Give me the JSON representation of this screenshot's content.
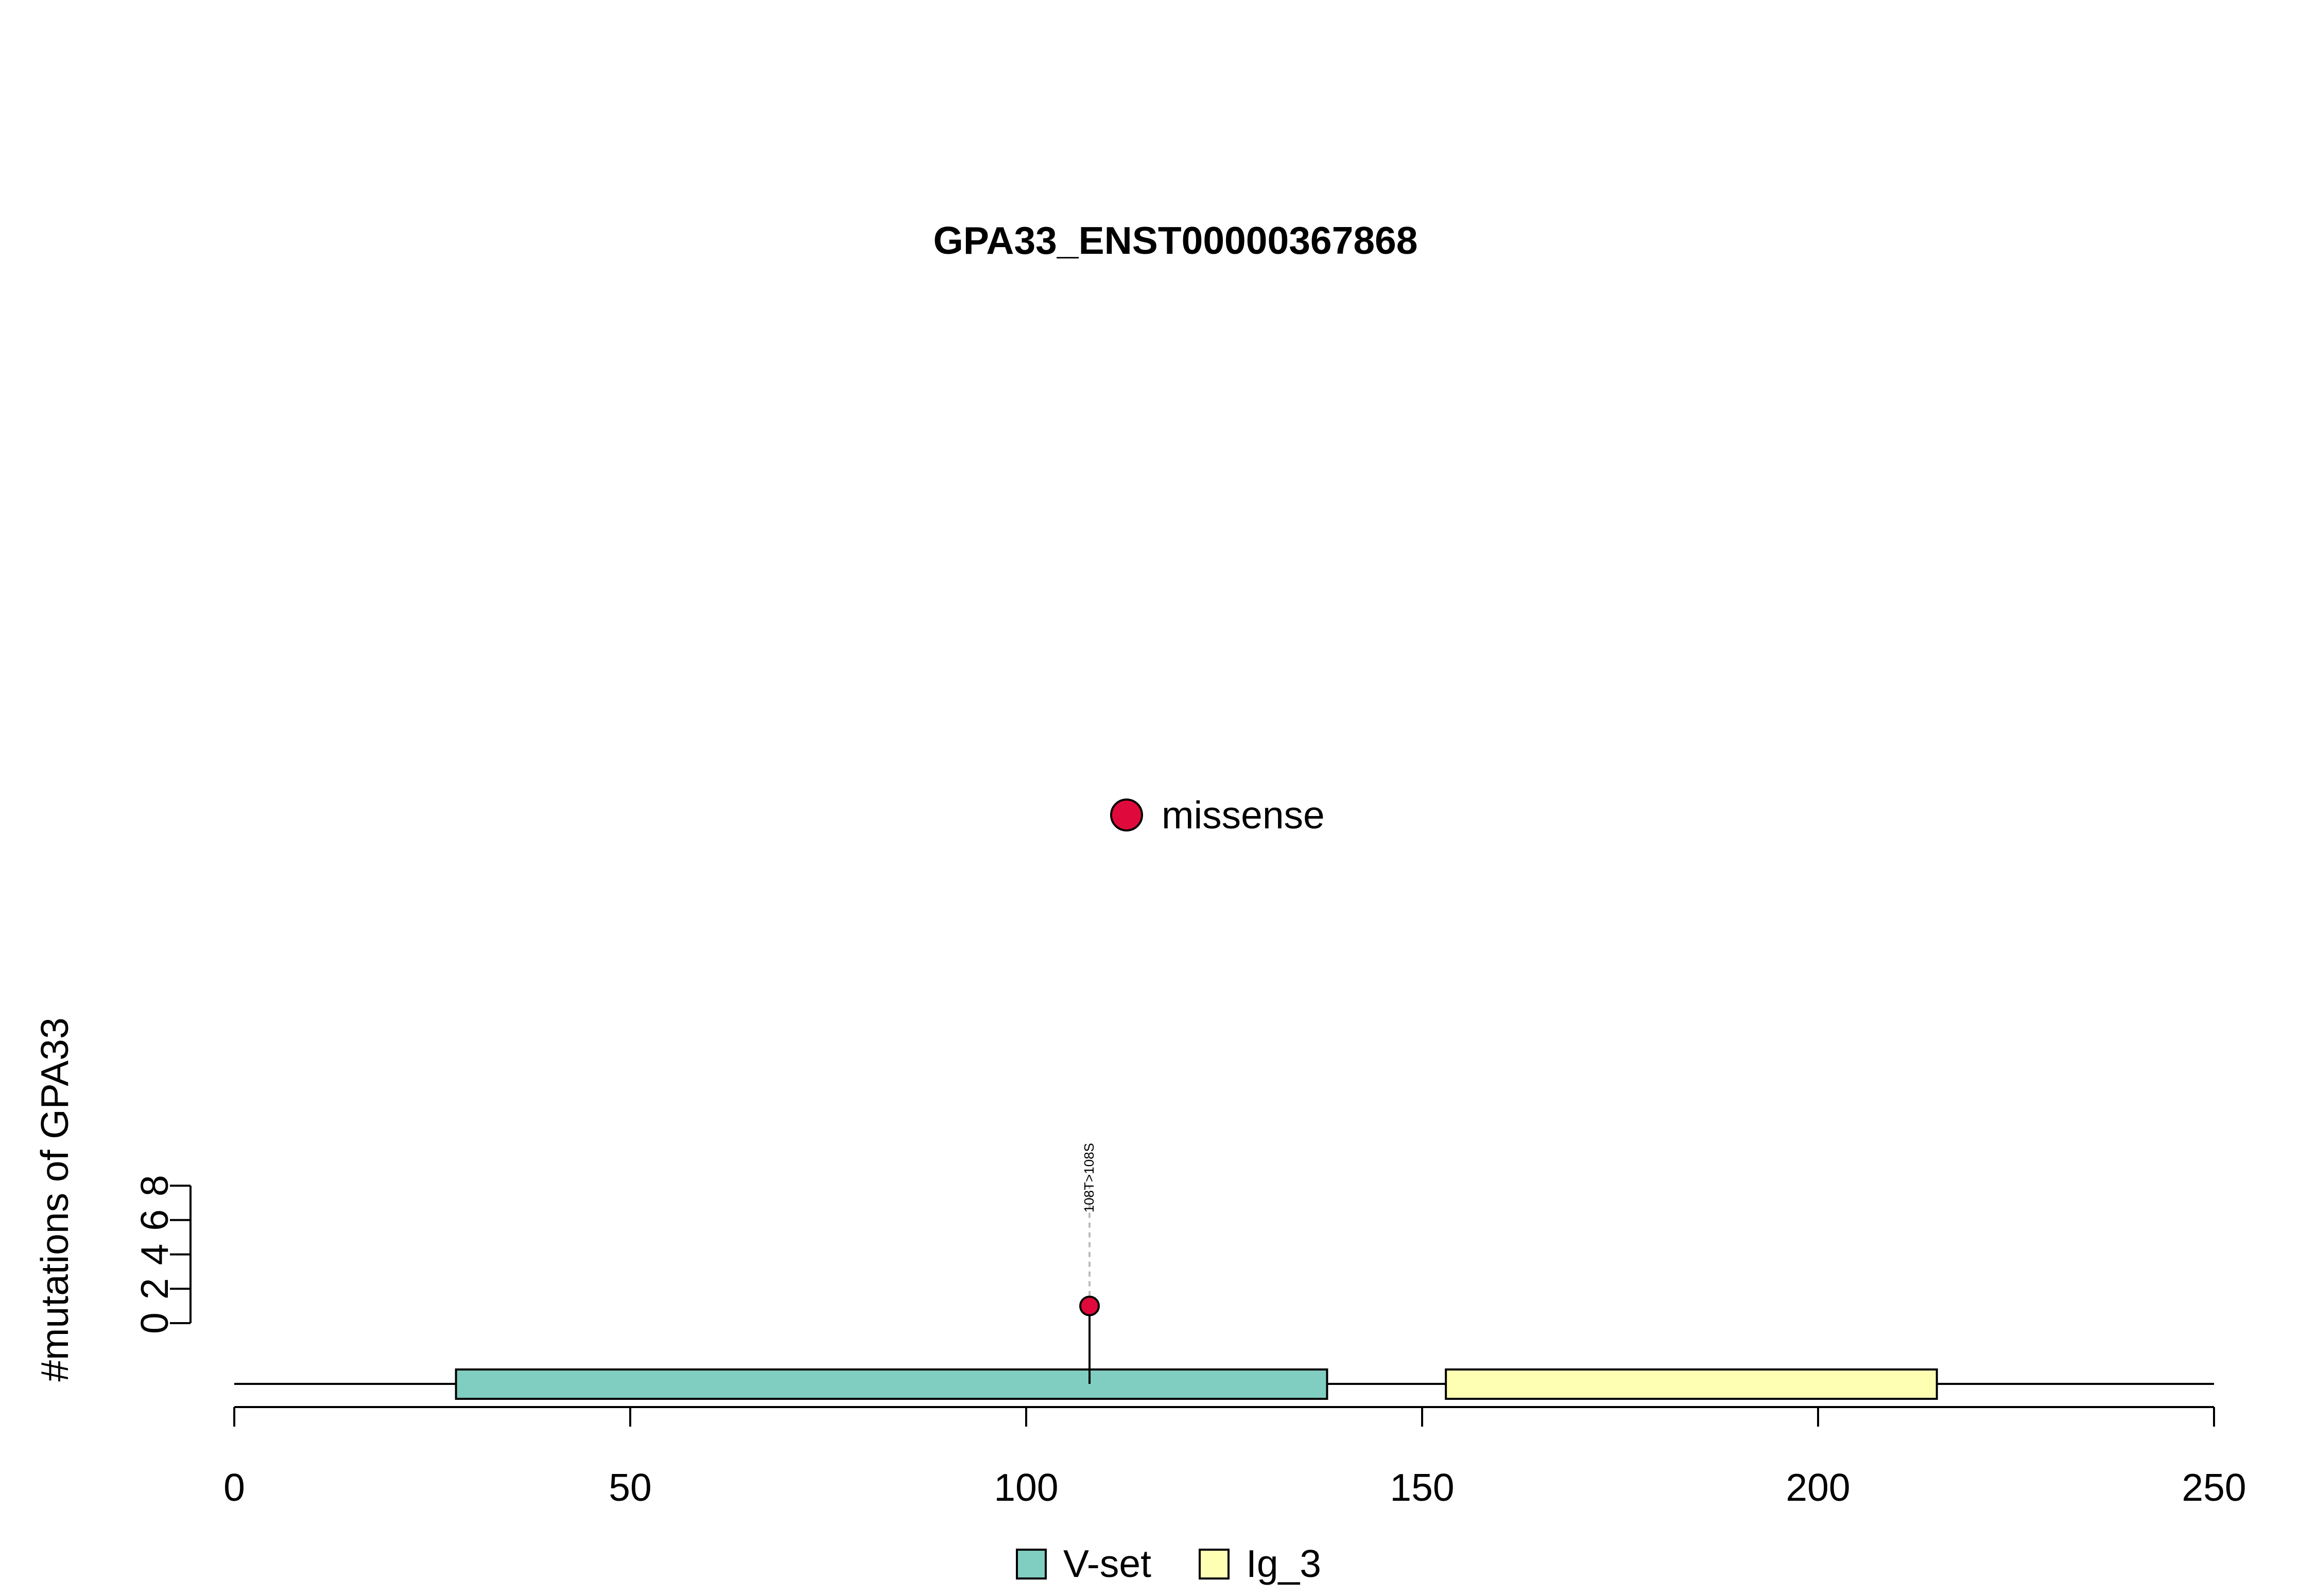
{
  "chart_data": {
    "type": "scatter",
    "subtype": "lollipop",
    "title": "GPA33_ENST00000367868",
    "ylabel": "#mutations of GPA33",
    "xlabel": "",
    "xlim": [
      0,
      250
    ],
    "x_ticks": [
      "0",
      "50",
      "100",
      "150",
      "200",
      "250"
    ],
    "ylim": [
      0,
      8
    ],
    "y_ticks": [
      "0",
      "2",
      "4",
      "6",
      "8"
    ],
    "protein_length": 250,
    "mutation_series": [
      {
        "name": "missense",
        "color": "#E0093C"
      }
    ],
    "mutations": [
      {
        "position": 108,
        "count": 1,
        "type": "missense",
        "label": "108T>108S"
      }
    ],
    "domains": [
      {
        "name": "V-set",
        "start": 28,
        "end": 138,
        "color": "#80CDC1"
      },
      {
        "name": "Ig_3",
        "start": 153,
        "end": 215,
        "color": "#FFFFB3"
      }
    ],
    "grid": false,
    "legend_position": "bottom"
  }
}
